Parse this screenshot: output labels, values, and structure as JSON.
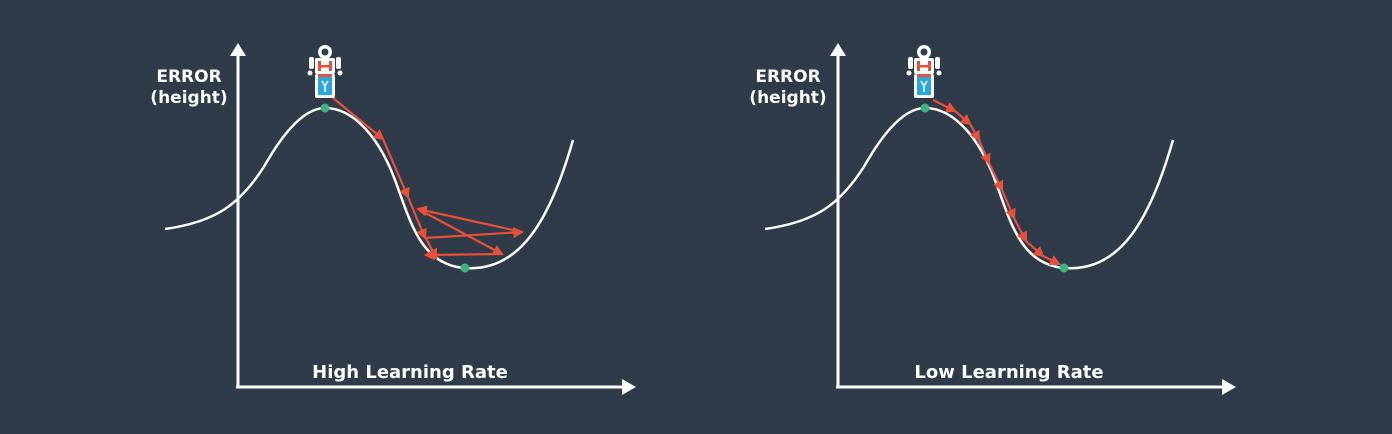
{
  "colors": {
    "background": "#2f3b49",
    "axis": "#ffffff",
    "curve": "#ffffff",
    "step_arrow": "#e8503a",
    "point": "#3fb27f",
    "robot_body": "#ffffff",
    "robot_accent": "#e8503a",
    "robot_screen": "#29a8e0"
  },
  "panels": [
    {
      "y_axis_label_line1": "ERROR",
      "y_axis_label_line2": "(height)",
      "x_axis_label": "High Learning Rate",
      "robot_icon": "robot-icon"
    },
    {
      "y_axis_label_line1": "ERROR",
      "y_axis_label_line2": "(height)",
      "x_axis_label": "Low Learning Rate",
      "robot_icon": "robot-icon"
    }
  ]
}
